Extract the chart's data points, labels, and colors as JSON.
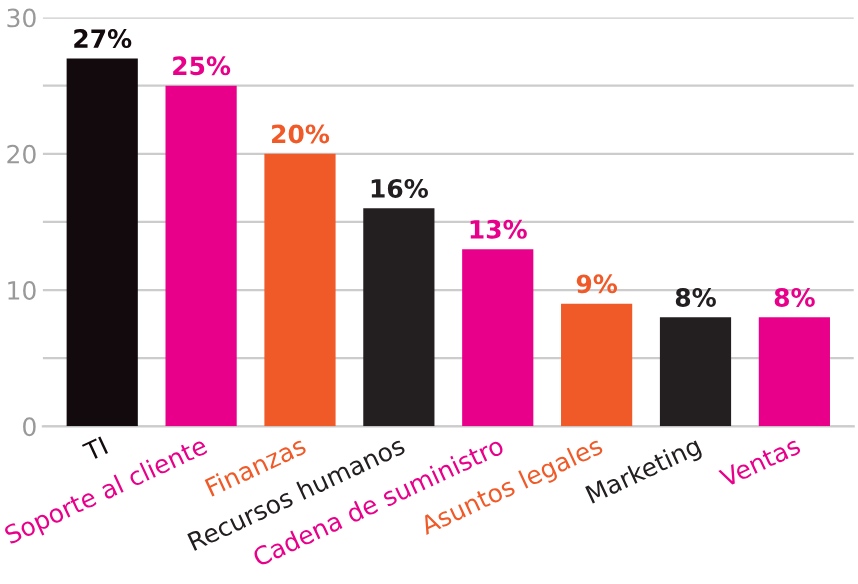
{
  "chart_data": {
    "type": "bar",
    "categories": [
      "TI",
      "Soporte al cliente",
      "Finanzas",
      "Recursos humanos",
      "Cadena de suministro",
      "Asuntos legales",
      "Marketing",
      "Ventas"
    ],
    "values": [
      27,
      25,
      20,
      16,
      13,
      9,
      8,
      8
    ],
    "colors": [
      "#120a0c",
      "#e8008a",
      "#f05a28",
      "#231f20",
      "#e8008a",
      "#f05a28",
      "#231f20",
      "#e8008a"
    ],
    "value_labels": [
      "27%",
      "25%",
      "20%",
      "16%",
      "13%",
      "9%",
      "8%",
      "8%"
    ],
    "ylim": [
      0,
      30
    ],
    "yticks": [
      0,
      {
        "value": 5,
        "label": null
      },
      10,
      {
        "value": 15,
        "label": null
      },
      20,
      {
        "value": 25,
        "label": null
      },
      30
    ],
    "grid": "y"
  }
}
